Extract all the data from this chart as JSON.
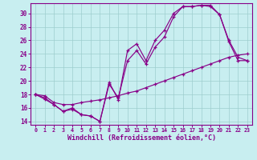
{
  "title": "",
  "xlabel": "Windchill (Refroidissement éolien,°C)",
  "ylabel": "",
  "bg_color": "#c8eef0",
  "line_color": "#880088",
  "xlim": [
    -0.5,
    23.5
  ],
  "ylim": [
    13.5,
    31.5
  ],
  "xticks": [
    0,
    1,
    2,
    3,
    4,
    5,
    6,
    7,
    8,
    9,
    10,
    11,
    12,
    13,
    14,
    15,
    16,
    17,
    18,
    19,
    20,
    21,
    22,
    23
  ],
  "yticks": [
    14,
    16,
    18,
    20,
    22,
    24,
    26,
    28,
    30
  ],
  "curve1_x": [
    0,
    1,
    2,
    3,
    4,
    5,
    6,
    7,
    8,
    9,
    10,
    11,
    12,
    13,
    14,
    15,
    16,
    17,
    18,
    19,
    20,
    21,
    22,
    23
  ],
  "curve1_y": [
    18.0,
    17.3,
    16.5,
    15.5,
    16.0,
    15.0,
    14.8,
    14.0,
    19.8,
    17.2,
    24.5,
    25.5,
    23.0,
    26.0,
    27.5,
    30.0,
    31.0,
    31.0,
    31.2,
    31.2,
    29.8,
    25.8,
    23.0,
    23.0
  ],
  "curve2_x": [
    0,
    1,
    2,
    3,
    4,
    5,
    6,
    7,
    8,
    9,
    10,
    11,
    12,
    13,
    14,
    15,
    16,
    17,
    18,
    19,
    20,
    21,
    22,
    23
  ],
  "curve2_y": [
    18.0,
    17.5,
    16.5,
    15.5,
    15.8,
    15.0,
    14.8,
    14.0,
    19.5,
    17.5,
    23.0,
    24.5,
    22.5,
    25.0,
    26.5,
    29.5,
    31.0,
    31.0,
    31.2,
    31.0,
    29.8,
    26.0,
    23.5,
    23.0
  ],
  "curve3_x": [
    0,
    1,
    2,
    3,
    4,
    5,
    6,
    7,
    8,
    9,
    10,
    11,
    12,
    13,
    14,
    15,
    16,
    17,
    18,
    19,
    20,
    21,
    22,
    23
  ],
  "curve3_y": [
    18.0,
    17.8,
    16.8,
    16.5,
    16.5,
    16.8,
    17.0,
    17.2,
    17.5,
    17.8,
    18.2,
    18.5,
    19.0,
    19.5,
    20.0,
    20.5,
    21.0,
    21.5,
    22.0,
    22.5,
    23.0,
    23.5,
    23.8,
    24.0
  ]
}
